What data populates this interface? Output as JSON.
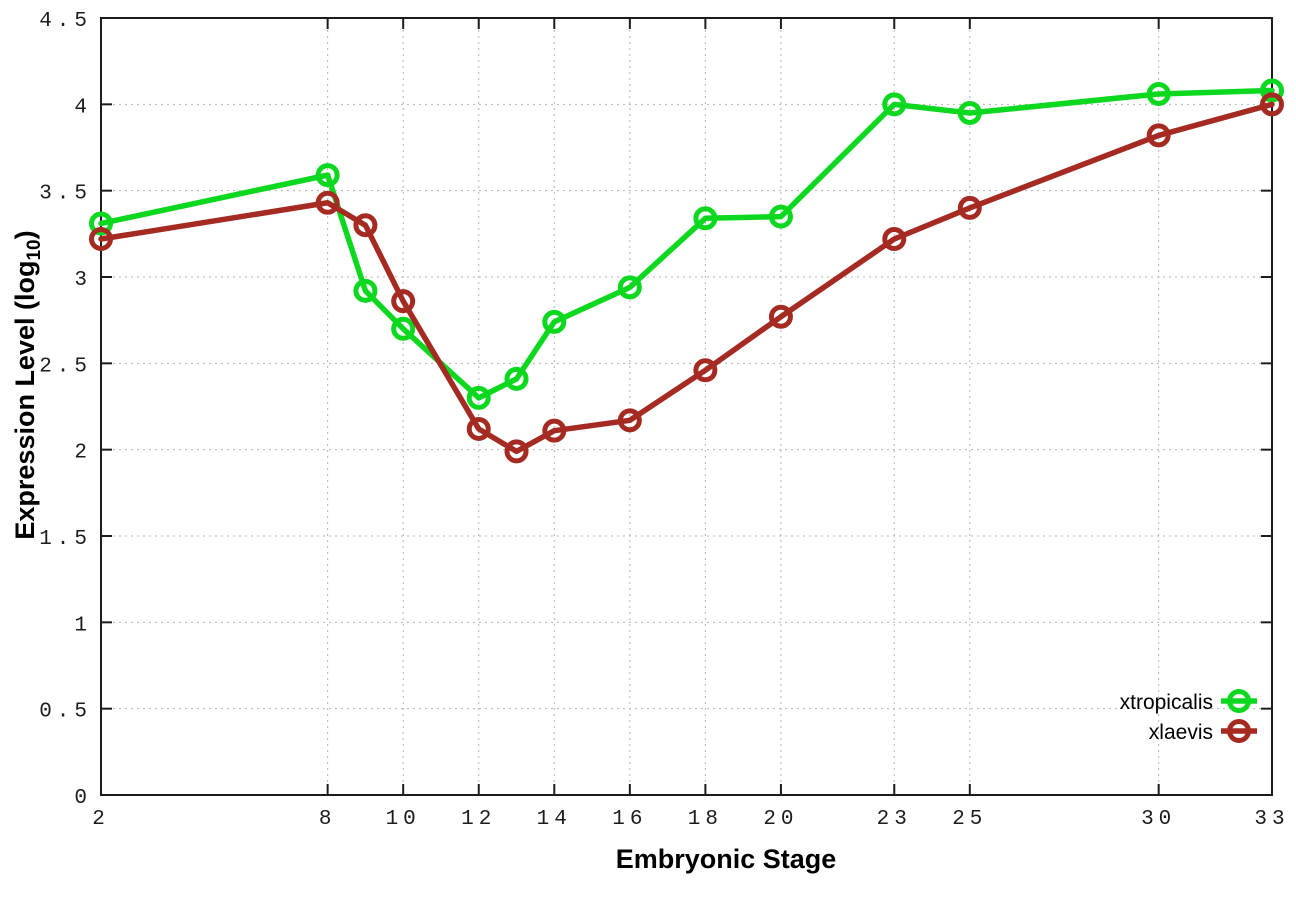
{
  "chart_data": {
    "type": "line",
    "title": "",
    "xlabel": "Embryonic Stage",
    "ylabel_main": "Expression Level (log",
    "ylabel_sub": "10",
    "ylabel_close": ")",
    "x": [
      2,
      8,
      9,
      10,
      12,
      13,
      14,
      16,
      18,
      20,
      23,
      25,
      30,
      33
    ],
    "series": [
      {
        "name": "xtropicalis",
        "color": "#0bd81e",
        "values": [
          3.31,
          3.59,
          2.92,
          2.7,
          2.3,
          2.41,
          2.74,
          2.94,
          3.34,
          3.35,
          4.0,
          3.95,
          4.06,
          4.08
        ]
      },
      {
        "name": "xlaevis",
        "color": "#a52a21",
        "values": [
          3.22,
          3.43,
          3.3,
          2.86,
          2.12,
          1.99,
          2.11,
          2.17,
          2.46,
          2.77,
          3.22,
          3.4,
          3.82,
          4.0
        ]
      }
    ],
    "xticks": [
      2,
      8,
      10,
      12,
      14,
      16,
      18,
      20,
      23,
      25,
      30,
      33
    ],
    "xtick_labels": [
      "2",
      "8",
      "10",
      "12",
      "14",
      "16",
      "18",
      "20",
      "23",
      "25",
      "30",
      "33"
    ],
    "yticks": [
      0,
      0.5,
      1,
      1.5,
      2,
      2.5,
      3,
      3.5,
      4,
      4.5
    ],
    "ytick_labels": [
      "0",
      "0.5",
      "1",
      "1.5",
      "2",
      "2.5",
      "3",
      "3.5",
      "4",
      "4.5"
    ],
    "xlim": [
      2,
      33
    ],
    "ylim": [
      0,
      4.5
    ],
    "grid": true,
    "legend_position": "inside-right-bottom",
    "legend": [
      "xtropicalis",
      "xlaevis"
    ]
  },
  "style_colors": {
    "grid": "#b4b4b4",
    "border": "#1c1c1c",
    "tick": "#1c1c1c",
    "text": "#000000"
  }
}
